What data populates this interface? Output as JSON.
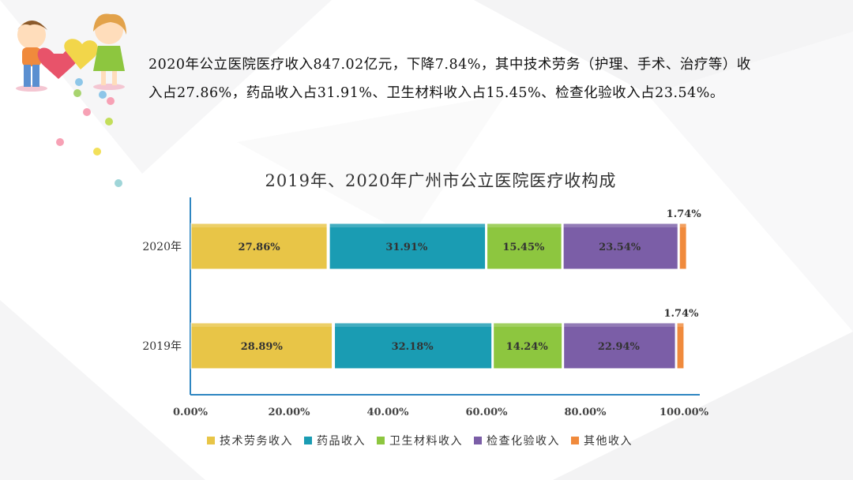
{
  "intro_text": "2020年公立医院医疗收入847.02亿元，下降7.84%，其中技术劳务（护理、手术、治疗等）收入占27.86%，药品收入占31.91%、卫生材料收入占15.45%、检查化验收入占23.54%。",
  "colors": {
    "tech": "#E8C547",
    "drug": "#1A9CB3",
    "material": "#8DC63F",
    "exam": "#7B5EA7",
    "other": "#F08A3C",
    "axis": "#2E86C1"
  },
  "chart_data": {
    "type": "bar",
    "orientation": "horizontal",
    "stacked": true,
    "title": "2019年、2020年广州市公立医院医疗收构成",
    "categories": [
      "2020年",
      "2019年"
    ],
    "series": [
      {
        "name": "技术劳务收入",
        "color_key": "tech",
        "values": [
          27.86,
          28.89
        ],
        "labels": [
          "27.86%",
          "28.89%"
        ]
      },
      {
        "name": "药品收入",
        "color_key": "drug",
        "values": [
          31.91,
          32.18
        ],
        "labels": [
          "31.91%",
          "32.18%"
        ]
      },
      {
        "name": "卫生材料收入",
        "color_key": "material",
        "values": [
          15.45,
          14.24
        ],
        "labels": [
          "15.45%",
          "14.24%"
        ]
      },
      {
        "name": "检查化验收入",
        "color_key": "exam",
        "values": [
          23.54,
          22.94
        ],
        "labels": [
          "23.54%",
          "22.94%"
        ]
      },
      {
        "name": "其他收入",
        "color_key": "other",
        "values": [
          1.74,
          1.74
        ],
        "labels": [
          "1.74%",
          "1.74%"
        ]
      }
    ],
    "xlim": [
      0,
      100
    ],
    "x_ticks": [
      "0.00%",
      "20.00%",
      "40.00%",
      "60.00%",
      "80.00%",
      "100.00%"
    ],
    "legend_position": "bottom",
    "grid": false
  }
}
